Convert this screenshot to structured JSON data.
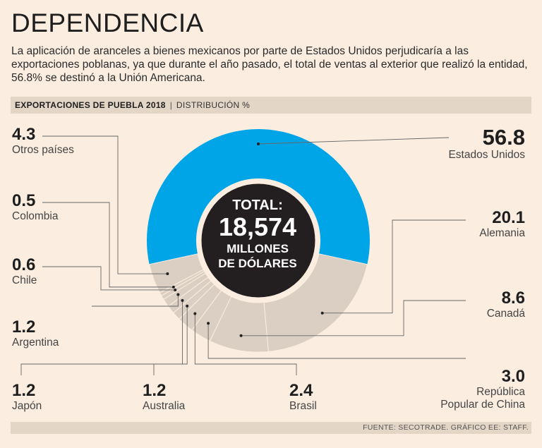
{
  "header": {
    "title": "DEPENDENCIA",
    "description": "La aplicación de aranceles a bienes mexicanos por parte de Estados Unidos perjudicaría a las exportaciones poblanas, ya que durante el año pasado, el total de ventas al exterior que realizó la entidad, 56.8% se destinó a la Unión Americana."
  },
  "section": {
    "title": "EXPORTACIONES DE PUEBLA 2018",
    "separator": "|",
    "subtitle": "DISTRIBUCIÓN %"
  },
  "center": {
    "line1": "TOTAL:",
    "line2": "18,574",
    "line3": "MILLONES",
    "line4": "DE DÓLARES"
  },
  "labels": {
    "estados_unidos": {
      "value": "56.8",
      "name": "Estados Unidos"
    },
    "alemania": {
      "value": "20.1",
      "name": "Alemania"
    },
    "canada": {
      "value": "8.6",
      "name": "Canadá"
    },
    "china": {
      "value": "3.0",
      "name1": "República",
      "name2": "Popular de China"
    },
    "brasil": {
      "value": "2.4",
      "name": "Brasil"
    },
    "australia": {
      "value": "1.2",
      "name": "Australia"
    },
    "japon": {
      "value": "1.2",
      "name": "Japón"
    },
    "argentina": {
      "value": "1.2",
      "name": "Argentina"
    },
    "chile": {
      "value": "0.6",
      "name": "Chile"
    },
    "colombia": {
      "value": "0.5",
      "name": "Colombia"
    },
    "otros": {
      "value": "4.3",
      "name": "Otros países"
    }
  },
  "source": "FUENTE: SECOTRADE. GRÁFICO EE: STAFF.",
  "colors": {
    "highlight": "#00a5e8",
    "segment": "#dacfc2",
    "center": "#231f20",
    "background": "#fbeee0",
    "line": "#666666"
  },
  "chart_data": {
    "type": "pie",
    "title": "EXPORTACIONES DE PUEBLA 2018 | DISTRIBUCIÓN %",
    "unit": "%",
    "categories": [
      "Estados Unidos",
      "Alemania",
      "Canadá",
      "República Popular de China",
      "Brasil",
      "Australia",
      "Japón",
      "Argentina",
      "Chile",
      "Colombia",
      "Otros países"
    ],
    "values": [
      56.8,
      20.1,
      8.6,
      3.0,
      2.4,
      1.2,
      1.2,
      1.2,
      0.6,
      0.5,
      4.3
    ],
    "total_label": "TOTAL: 18,574 MILLONES DE DÓLARES"
  }
}
